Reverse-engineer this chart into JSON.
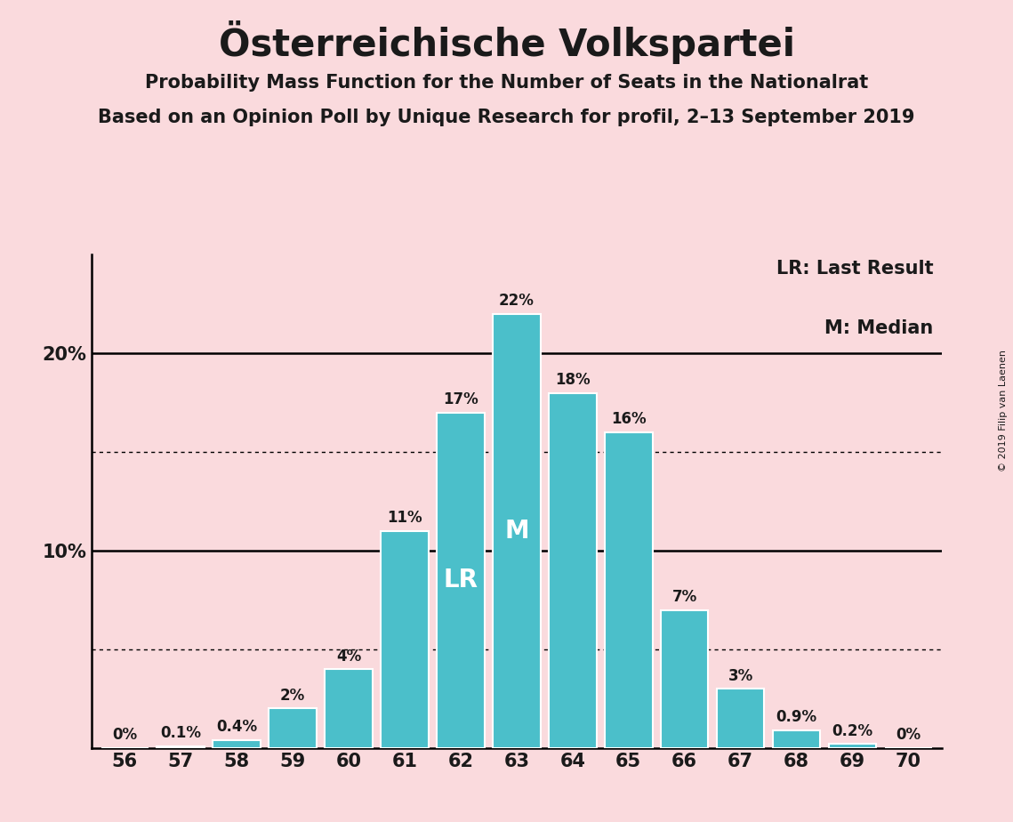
{
  "title": "Österreichische Volkspartei",
  "subtitle1": "Probability Mass Function for the Number of Seats in the Nationalrat",
  "subtitle2": "Based on an Opinion Poll by Unique Research for profil, 2–13 September 2019",
  "copyright": "© 2019 Filip van Laenen",
  "categories": [
    56,
    57,
    58,
    59,
    60,
    61,
    62,
    63,
    64,
    65,
    66,
    67,
    68,
    69,
    70
  ],
  "values": [
    0.0,
    0.1,
    0.4,
    2.0,
    4.0,
    11.0,
    17.0,
    22.0,
    18.0,
    16.0,
    7.0,
    3.0,
    0.9,
    0.2,
    0.0
  ],
  "bar_color": "#4bbfca",
  "background_color": "#fadadd",
  "text_color": "#1a1a1a",
  "lr_seat": 62,
  "median_seat": 63,
  "lr_label": "LR",
  "median_label": "M",
  "legend_lr": "LR: Last Result",
  "legend_m": "M: Median",
  "ylim": [
    0,
    25
  ],
  "major_hlines": [
    10,
    20
  ],
  "minor_hlines": [
    5,
    15
  ],
  "ytick_positions": [
    10,
    20
  ],
  "ytick_labels": [
    "10%",
    "20%"
  ],
  "title_fontsize": 30,
  "subtitle_fontsize": 15,
  "tick_fontsize": 15,
  "bar_label_fontsize": 12,
  "inside_label_fontsize": 20,
  "legend_fontsize": 15
}
